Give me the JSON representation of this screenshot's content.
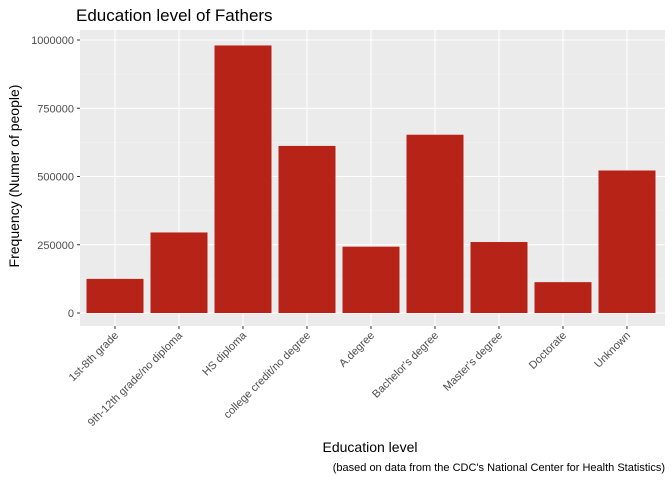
{
  "chart_data": {
    "type": "bar",
    "title": "Education level of Fathers",
    "xlabel": "Education level",
    "ylabel": "Frequency (Numer of people)",
    "caption": "(based on data from the CDC's National Center for Health Statistics)",
    "categories": [
      "1st-8th grade",
      "9th-12th grade/no diploma",
      "HS diploma",
      "college credit/no degree",
      "A.degree",
      "Bachelor's degree",
      "Master's degree",
      "Doctorate",
      "Unknown"
    ],
    "values": [
      125000,
      295000,
      980000,
      612000,
      243000,
      653000,
      260000,
      113000,
      522000
    ],
    "ylim": [
      0,
      1000000
    ],
    "yticks": [
      0,
      250000,
      500000,
      750000,
      1000000
    ],
    "ytick_labels": [
      "0",
      "250000",
      "500000",
      "750000",
      "1000000"
    ],
    "grid": true,
    "legend": "none",
    "colors": {
      "bar": "#B82318",
      "panel_background": "#EBEBEB",
      "grid_major": "#FFFFFF",
      "grid_minor": "#F5F5F5",
      "text": "#000000",
      "tick_text": "#4D4D4D",
      "tick_mark": "#333333"
    }
  }
}
